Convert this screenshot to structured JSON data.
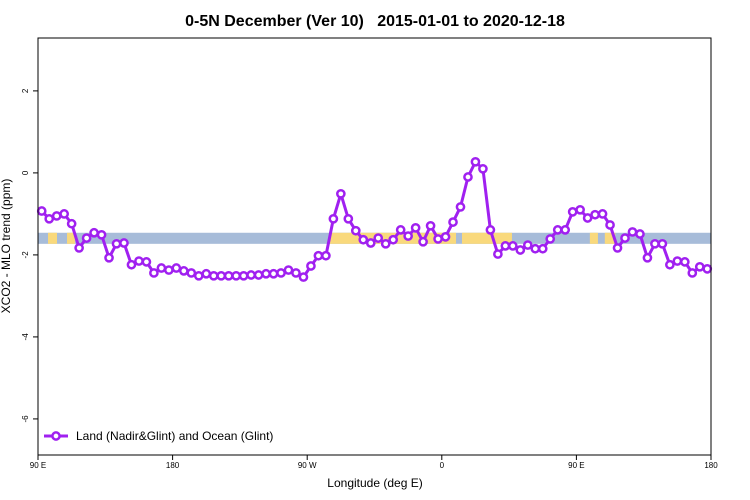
{
  "chart_data": {
    "type": "line",
    "title": "0-5N December (Ver 10)   2015-01-01 to 2020-12-18",
    "x_label": "Longitude (deg E)",
    "y_label": "XCO2 - MLO trend (ppm)",
    "xlim": [
      90,
      540
    ],
    "xticks": [
      {
        "value": 90,
        "label": "90 E"
      },
      {
        "value": 180,
        "label": "180"
      },
      {
        "value": 270,
        "label": "90 W"
      },
      {
        "value": 360,
        "label": "0"
      },
      {
        "value": 450,
        "label": "90 E"
      },
      {
        "value": 540,
        "label": "180"
      }
    ],
    "ylim": [
      -6.88,
      3.29
    ],
    "yticks": [
      -6,
      -4,
      -2,
      0,
      2
    ],
    "legend": "bottom-left",
    "band": {
      "y": [
        -1.73,
        -1.46
      ],
      "color": "#a7bcd9",
      "land_color": "#f9d97c",
      "land": [
        [
          96.7,
          102.7
        ],
        [
          109.4,
          114.7
        ],
        [
          285.2,
          369.5
        ],
        [
          373.5,
          406.9
        ],
        [
          459,
          464.4
        ],
        [
          469,
          476
        ]
      ]
    },
    "x": [
      92.5,
      97.5,
      102.5,
      107.5,
      112.5,
      117.5,
      122.5,
      127.5,
      132.5,
      137.5,
      142.5,
      147.5,
      152.5,
      157.5,
      162.5,
      167.5,
      172.5,
      177.5,
      182.5,
      187.5,
      192.5,
      197.5,
      202.5,
      207.5,
      212.5,
      217.5,
      222.5,
      227.5,
      232.5,
      237.5,
      242.5,
      247.5,
      252.5,
      257.5,
      262.5,
      267.5,
      272.5,
      277.5,
      282.5,
      287.5,
      292.5,
      297.5,
      302.5,
      307.5,
      312.5,
      317.5,
      322.5,
      327.5,
      332.5,
      337.5,
      342.5,
      347.5,
      352.5,
      357.5,
      362.5,
      367.5,
      372.5,
      377.5,
      382.5,
      387.5,
      392.5,
      397.5,
      402.5,
      407.5,
      412.5,
      417.5,
      422.5,
      427.5,
      432.5,
      437.5,
      442.5,
      447.5,
      452.5,
      457.5,
      462.5,
      467.5,
      472.5,
      477.5,
      482.5,
      487.5,
      492.5,
      497.5,
      502.5,
      507.5,
      512.5,
      517.5,
      522.5,
      527.5,
      532.5,
      537.5
    ],
    "series": [
      {
        "name": "Land (Nadir&Glint) and Ocean (Glint)",
        "color": "#a020f0",
        "values": [
          -0.93,
          -1.12,
          -1.05,
          -1.0,
          -1.24,
          -1.83,
          -1.59,
          -1.46,
          -1.51,
          -2.07,
          -1.73,
          -1.71,
          -2.24,
          -2.15,
          -2.17,
          -2.44,
          -2.32,
          -2.37,
          -2.32,
          -2.39,
          -2.44,
          -2.51,
          -2.46,
          -2.51,
          -2.51,
          -2.51,
          -2.51,
          -2.51,
          -2.49,
          -2.49,
          -2.46,
          -2.46,
          -2.44,
          -2.37,
          -2.44,
          -2.54,
          -2.27,
          -2.02,
          -2.02,
          -1.12,
          -0.51,
          -1.12,
          -1.41,
          -1.63,
          -1.71,
          -1.59,
          -1.73,
          -1.63,
          -1.39,
          -1.54,
          -1.34,
          -1.68,
          -1.29,
          -1.61,
          -1.56,
          -1.2,
          -0.83,
          -0.1,
          0.27,
          0.1,
          -1.39,
          -1.98,
          -1.78,
          -1.78,
          -1.88,
          -1.76,
          -1.85,
          -1.85,
          -1.61,
          -1.39,
          -1.39,
          -0.95,
          -0.9,
          -1.1,
          -1.02,
          -1.0,
          -1.27,
          -1.83,
          -1.59,
          -1.44,
          -1.49,
          -2.07,
          -1.73,
          -1.73,
          -2.24,
          -2.15,
          -2.17,
          -2.44,
          -2.29,
          -2.34
        ]
      }
    ]
  }
}
